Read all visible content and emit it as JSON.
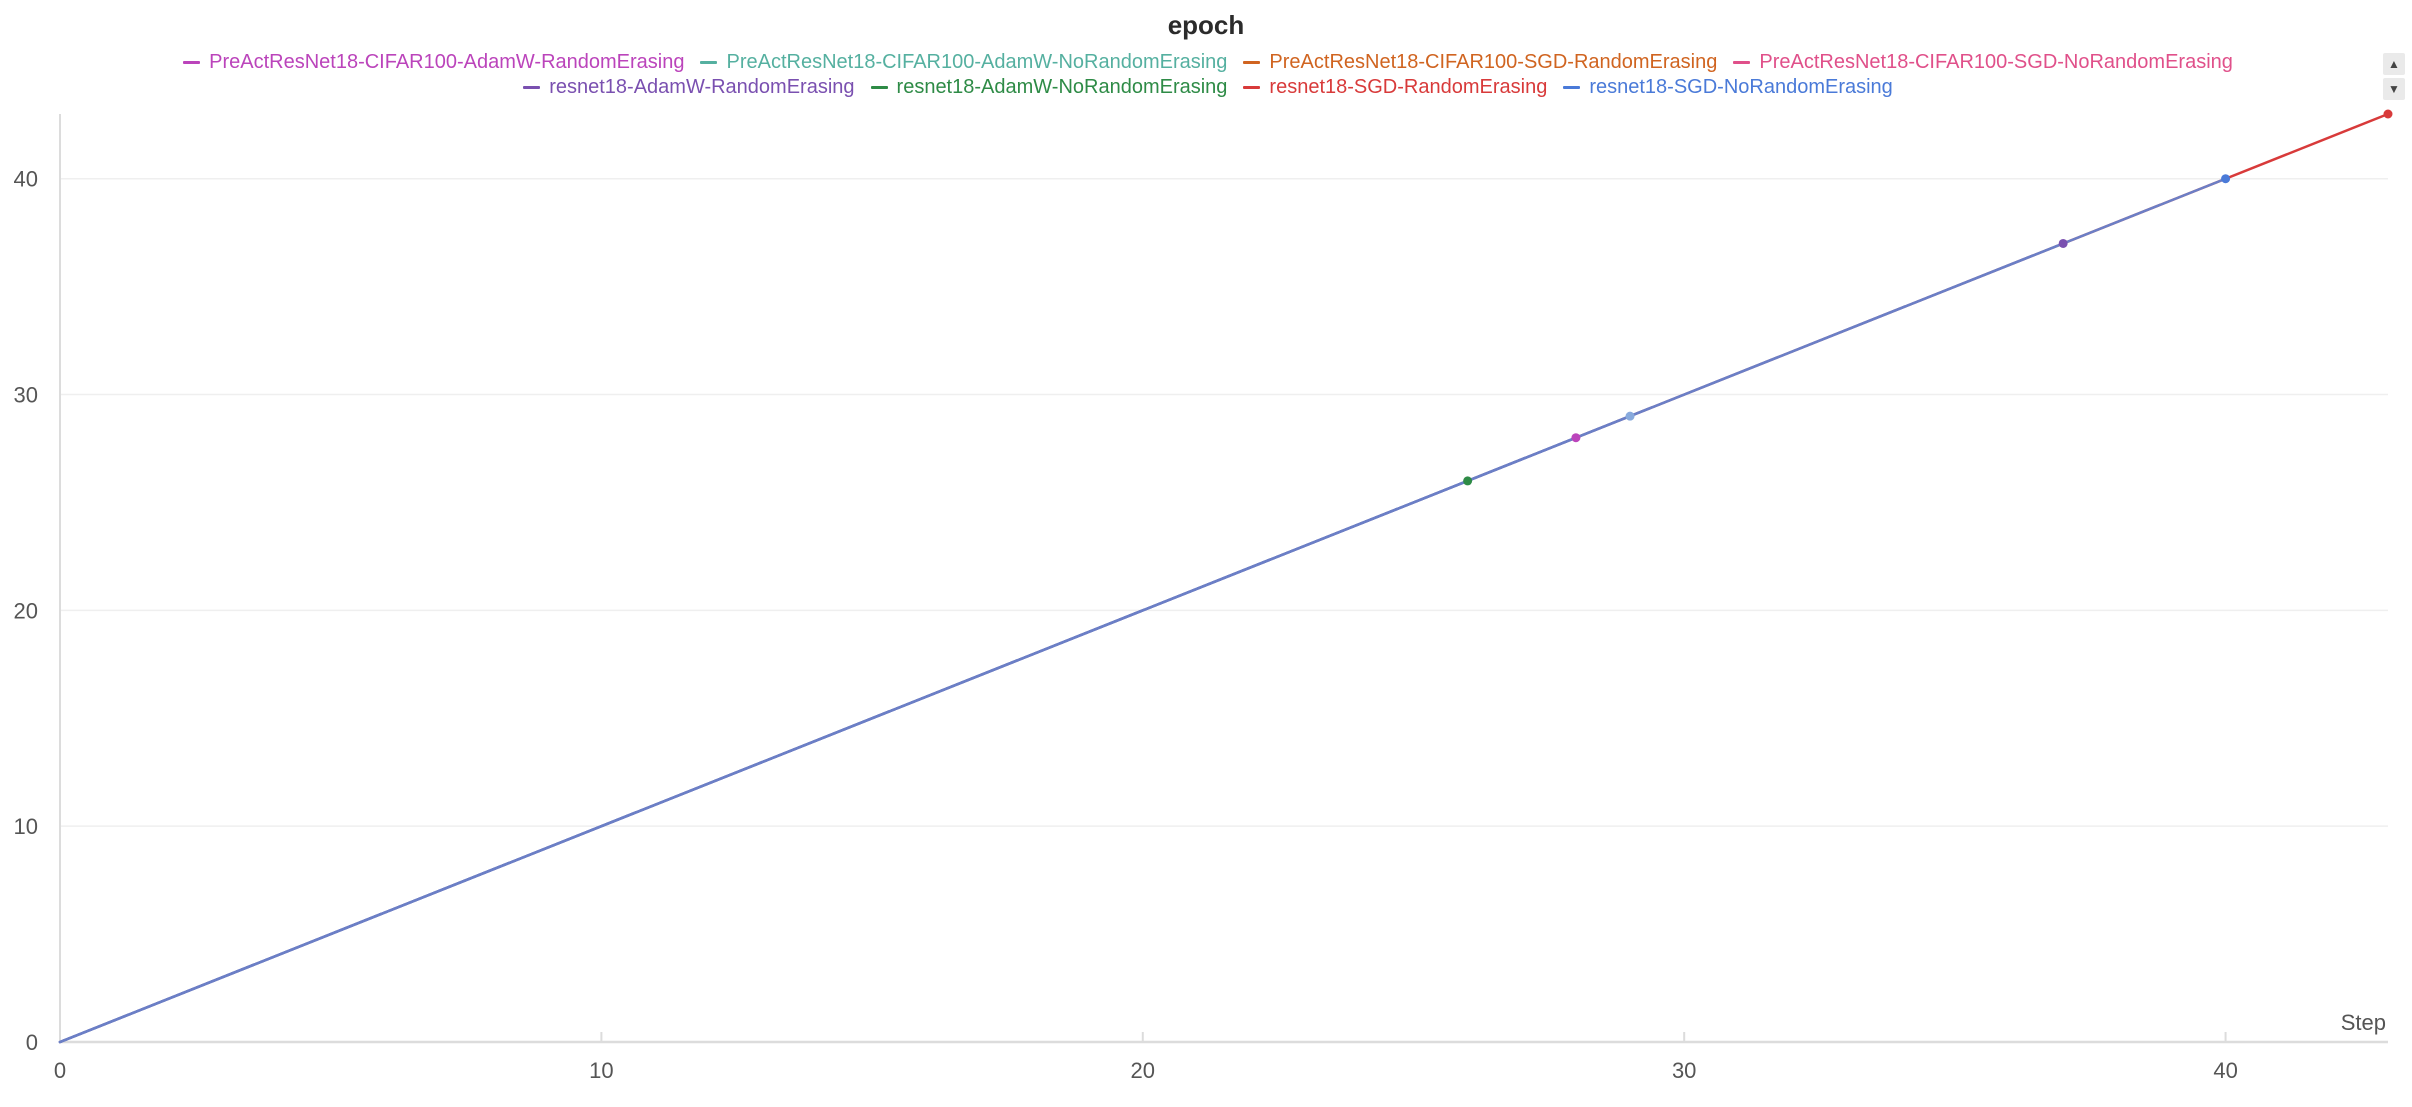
{
  "chart_data": {
    "type": "line",
    "title": "epoch",
    "xlabel": "Step",
    "ylabel": "",
    "xlim": [
      0,
      43
    ],
    "ylim": [
      0,
      43
    ],
    "xticks": [
      "0",
      "10",
      "20",
      "30",
      "40"
    ],
    "yticks": [
      "0",
      "10",
      "20",
      "30",
      "40"
    ],
    "xtick_values": [
      0,
      10,
      20,
      30,
      40
    ],
    "ytick_values": [
      0,
      10,
      20,
      30,
      40
    ],
    "grid": true,
    "legend_position": "top",
    "series": [
      {
        "name": "PreActResNet18-CIFAR100-AdamW-RandomErasing",
        "color": "#bb44bb",
        "x_end": 28
      },
      {
        "name": "PreActResNet18-CIFAR100-AdamW-NoRandomErasing",
        "color": "#55b0a0",
        "x_end": 0
      },
      {
        "name": "PreActResNet18-CIFAR100-SGD-RandomErasing",
        "color": "#d06420",
        "x_end": 0
      },
      {
        "name": "PreActResNet18-CIFAR100-SGD-NoRandomErasing",
        "color": "#e0508a",
        "x_end": 0
      },
      {
        "name": "resnet18-AdamW-RandomErasing",
        "color": "#7a50b0",
        "x_end": 37
      },
      {
        "name": "resnet18-AdamW-NoRandomErasing",
        "color": "#2e8b46",
        "x_end": 26
      },
      {
        "name": "resnet18-SGD-RandomErasing",
        "color": "#d83a3a",
        "x_end": 43
      },
      {
        "name": "resnet18-SGD-NoRandomErasing",
        "color": "#4a7ad8",
        "x_end": 40
      },
      {
        "name": "",
        "color": "#88aadd",
        "x_end": 29
      }
    ],
    "visible_line_color": "#6b7fc6"
  }
}
